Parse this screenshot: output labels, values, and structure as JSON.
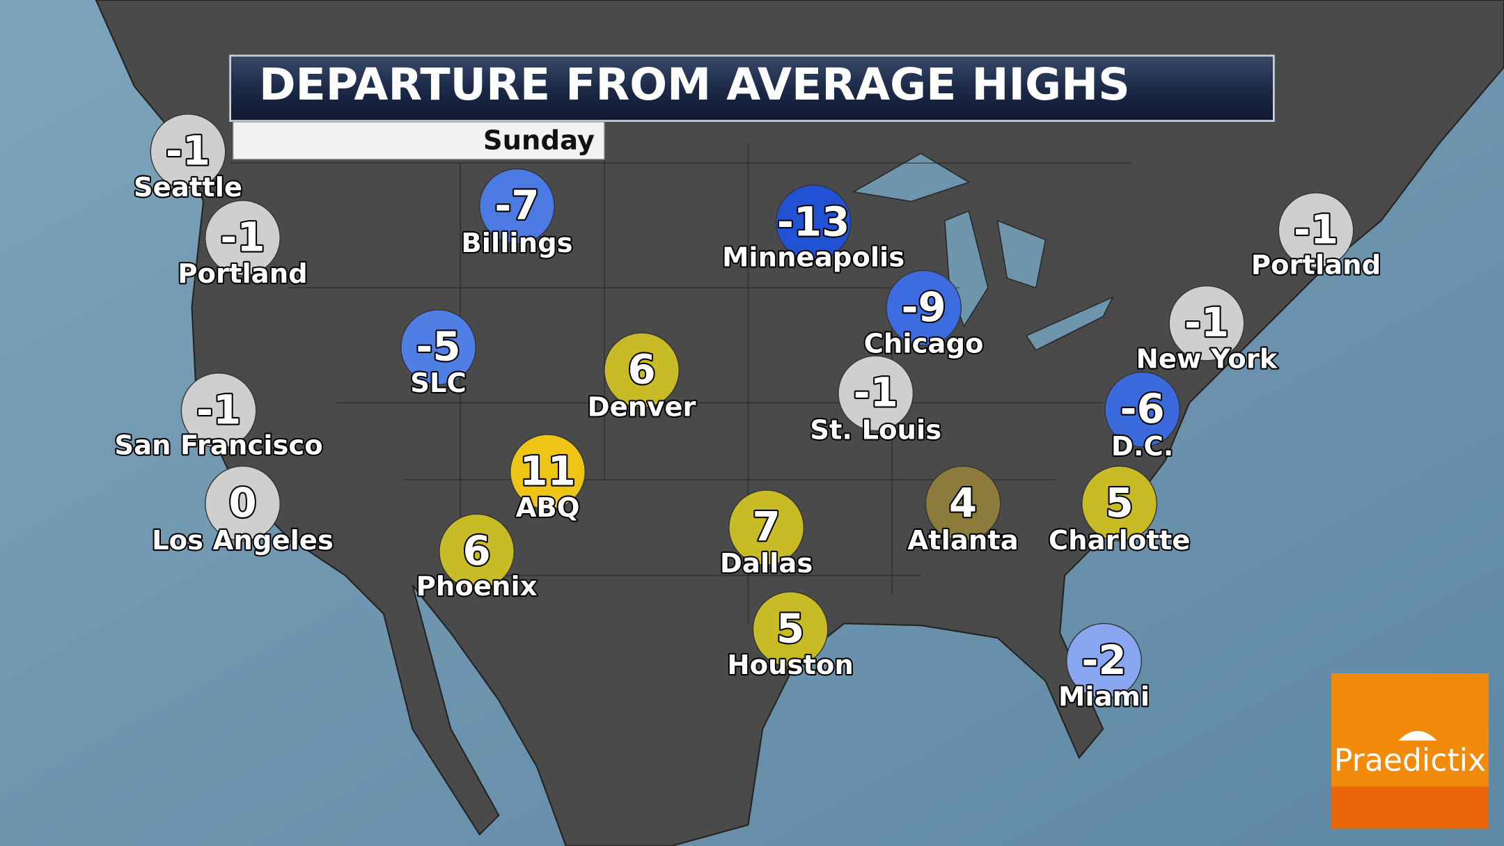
{
  "header": {
    "title": "DEPARTURE FROM AVERAGE HIGHS",
    "subtitle": "Sunday"
  },
  "cities": [
    {
      "name": "Seattle",
      "value": -1,
      "color": "#cfcfcf"
    },
    {
      "name": "Portland",
      "value": -1,
      "color": "#cfcfcf"
    },
    {
      "name": "Billings",
      "value": -7,
      "color": "#4a7ae2"
    },
    {
      "name": "Minneapolis",
      "value": -13,
      "color": "#2152d4"
    },
    {
      "name": "Chicago",
      "value": -9,
      "color": "#3c6ce0"
    },
    {
      "name": "Portland",
      "value": -1,
      "color": "#cfcfcf"
    },
    {
      "name": "New York",
      "value": -1,
      "color": "#cfcfcf"
    },
    {
      "name": "SLC",
      "value": -5,
      "color": "#4f7fe4"
    },
    {
      "name": "Denver",
      "value": 6,
      "color": "#c8bb26"
    },
    {
      "name": "St. Louis",
      "value": -1,
      "color": "#cfcfcf"
    },
    {
      "name": "D.C.",
      "value": -6,
      "color": "#3a6adc"
    },
    {
      "name": "San Francisco",
      "value": -1,
      "color": "#cfcfcf"
    },
    {
      "name": "ABQ",
      "value": 11,
      "color": "#eec417"
    },
    {
      "name": "Los Angeles",
      "value": 0,
      "color": "#cfcfcf"
    },
    {
      "name": "Atlanta",
      "value": 4,
      "color": "#8c7b3a"
    },
    {
      "name": "Charlotte",
      "value": 5,
      "color": "#c8bb26"
    },
    {
      "name": "Dallas",
      "value": 7,
      "color": "#c8bb26"
    },
    {
      "name": "Phoenix",
      "value": 6,
      "color": "#c8bb26"
    },
    {
      "name": "Houston",
      "value": 5,
      "color": "#c8bb26"
    },
    {
      "name": "Miami",
      "value": -2,
      "color": "#89a7f0"
    }
  ],
  "logo": {
    "text": "Praedictix"
  }
}
